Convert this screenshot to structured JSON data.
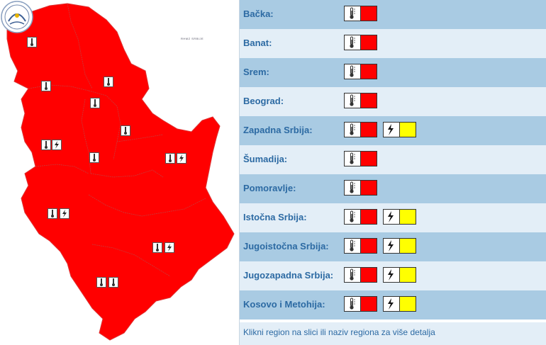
{
  "logo": {
    "text": "RHMZ SRBIJE"
  },
  "colors": {
    "map_fill": "#ff0000",
    "warn_red": "#ff0000",
    "warn_yellow": "#ffff00",
    "row_dark": "#a9cbe3",
    "row_light": "#e3eef7",
    "link": "#2c6aa3"
  },
  "regions": [
    {
      "name": "Bačka:",
      "warnings": [
        "thermometer-icon:red"
      ]
    },
    {
      "name": "Banat:",
      "warnings": [
        "thermometer-icon:red"
      ]
    },
    {
      "name": "Srem:",
      "warnings": [
        "thermometer-icon:red"
      ]
    },
    {
      "name": "Beograd:",
      "warnings": [
        "thermometer-icon:red"
      ]
    },
    {
      "name": "Zapadna Srbija:",
      "warnings": [
        "thermometer-icon:red",
        "lightning-icon:yellow"
      ]
    },
    {
      "name": "Šumadija:",
      "warnings": [
        "thermometer-icon:red"
      ]
    },
    {
      "name": "Pomoravlje:",
      "warnings": [
        "thermometer-icon:red"
      ]
    },
    {
      "name": "Istočna Srbija:",
      "warnings": [
        "thermometer-icon:red",
        "lightning-icon:yellow"
      ]
    },
    {
      "name": "Jugoistočna Srbija:",
      "warnings": [
        "thermometer-icon:red",
        "lightning-icon:yellow"
      ]
    },
    {
      "name": "Jugozapadna Srbija:",
      "warnings": [
        "thermometer-icon:red",
        "lightning-icon:yellow"
      ]
    },
    {
      "name": "Kosovo i Metohija:",
      "warnings": [
        "thermometer-icon:red",
        "lightning-icon:yellow"
      ]
    }
  ],
  "footer": {
    "text": "Klikni region na slici ili naziv regiona za više detalja"
  }
}
